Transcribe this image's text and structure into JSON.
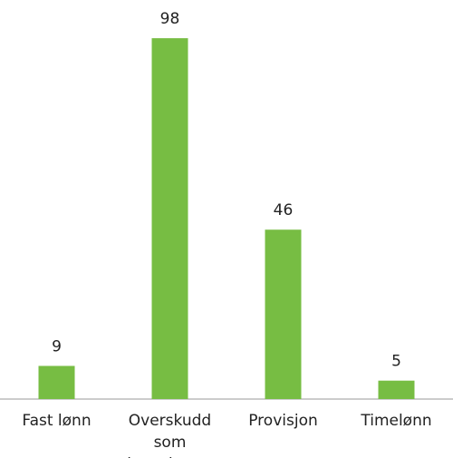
{
  "chart_data": {
    "type": "bar",
    "categories": [
      "Fast lønn",
      "Overskudd som løyvehaver",
      "Provisjon",
      "Timelønn"
    ],
    "values": [
      9,
      98,
      46,
      5
    ],
    "color": "#77bd43"
  }
}
